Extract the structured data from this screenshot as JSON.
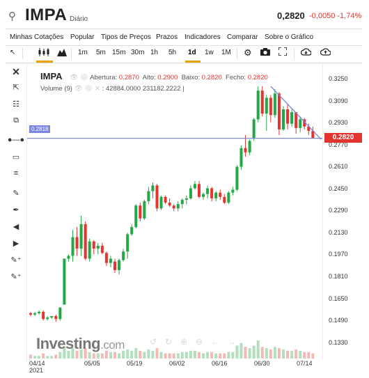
{
  "header": {
    "symbol": "IMPA",
    "period": "Diário",
    "price": "0,2820",
    "change": "-0,0050",
    "change_pct": "-1,74%"
  },
  "menu": {
    "items": [
      "Minhas Cotações",
      "Popular",
      "Tipos de Preços",
      "Prazos",
      "Indicadores",
      "Comparar",
      "Sobre o Gráfico"
    ]
  },
  "toolbar": {
    "intervals": [
      "1m",
      "5m",
      "15m",
      "30m",
      "1h",
      "5h",
      "1d",
      "1w",
      "1M"
    ],
    "active_interval": "1d"
  },
  "legend": {
    "symbol": "IMPA",
    "open_label": "Abertura:",
    "open": "0.2870",
    "high_label": "Alto:",
    "high": "0.2900",
    "low_label": "Baixo:",
    "low": "0.2820",
    "close_label": "Fecho:",
    "close": "0.2820",
    "volume_label": "Volume (9)",
    "volume": "42884.0000",
    "volume_ma": "231182.2222"
  },
  "price_axis": {
    "ticks": [
      "0.3250",
      "0.3090",
      "0.2930",
      "0.2770",
      "0.2610",
      "0.2450",
      "0.2290",
      "0.2130",
      "0.1970",
      "0.1810",
      "0.1650",
      "0.1490",
      "0.1330"
    ],
    "current_price_tag": "0.2820",
    "hline_tag": "0.2818"
  },
  "date_axis": {
    "ticks": [
      "04/14",
      "05/05",
      "05/19",
      "06/02",
      "06/16",
      "06/30",
      "07/14"
    ],
    "year": "2021"
  },
  "watermark": {
    "brand": "Investing",
    "suffix": ".com"
  },
  "colors": {
    "up": "#22a844",
    "down": "#e3342f",
    "hline": "#6f7fd6",
    "trendline": "#7b86e0",
    "accent": "#e8a200"
  },
  "chart_data": {
    "type": "candlestick",
    "ylim": [
      0.128,
      0.334
    ],
    "candles": [
      {
        "o": 0.16,
        "h": 0.161,
        "l": 0.158,
        "c": 0.159
      },
      {
        "o": 0.159,
        "h": 0.161,
        "l": 0.158,
        "c": 0.16
      },
      {
        "o": 0.16,
        "h": 0.162,
        "l": 0.159,
        "c": 0.161
      },
      {
        "o": 0.161,
        "h": 0.162,
        "l": 0.155,
        "c": 0.156
      },
      {
        "o": 0.156,
        "h": 0.158,
        "l": 0.155,
        "c": 0.157
      },
      {
        "o": 0.157,
        "h": 0.158,
        "l": 0.156,
        "c": 0.158
      },
      {
        "o": 0.158,
        "h": 0.159,
        "l": 0.154,
        "c": 0.156
      },
      {
        "o": 0.156,
        "h": 0.164,
        "l": 0.155,
        "c": 0.164
      },
      {
        "o": 0.166,
        "h": 0.198,
        "l": 0.166,
        "c": 0.198
      },
      {
        "o": 0.198,
        "h": 0.201,
        "l": 0.196,
        "c": 0.2
      },
      {
        "o": 0.2,
        "h": 0.218,
        "l": 0.196,
        "c": 0.213
      },
      {
        "o": 0.213,
        "h": 0.22,
        "l": 0.2,
        "c": 0.205
      },
      {
        "o": 0.205,
        "h": 0.228,
        "l": 0.2,
        "c": 0.222
      },
      {
        "o": 0.222,
        "h": 0.224,
        "l": 0.197,
        "c": 0.198
      },
      {
        "o": 0.198,
        "h": 0.212,
        "l": 0.196,
        "c": 0.21
      },
      {
        "o": 0.21,
        "h": 0.211,
        "l": 0.201,
        "c": 0.205
      },
      {
        "o": 0.205,
        "h": 0.209,
        "l": 0.201,
        "c": 0.207
      },
      {
        "o": 0.207,
        "h": 0.209,
        "l": 0.201,
        "c": 0.202
      },
      {
        "o": 0.202,
        "h": 0.203,
        "l": 0.193,
        "c": 0.195
      },
      {
        "o": 0.195,
        "h": 0.2,
        "l": 0.192,
        "c": 0.198
      },
      {
        "o": 0.196,
        "h": 0.198,
        "l": 0.188,
        "c": 0.19
      },
      {
        "o": 0.19,
        "h": 0.198,
        "l": 0.187,
        "c": 0.197
      },
      {
        "o": 0.197,
        "h": 0.205,
        "l": 0.196,
        "c": 0.203
      },
      {
        "o": 0.203,
        "h": 0.216,
        "l": 0.198,
        "c": 0.215
      },
      {
        "o": 0.215,
        "h": 0.222,
        "l": 0.214,
        "c": 0.22
      },
      {
        "o": 0.22,
        "h": 0.236,
        "l": 0.219,
        "c": 0.235
      },
      {
        "o": 0.235,
        "h": 0.237,
        "l": 0.224,
        "c": 0.226
      },
      {
        "o": 0.226,
        "h": 0.239,
        "l": 0.225,
        "c": 0.238
      },
      {
        "o": 0.238,
        "h": 0.248,
        "l": 0.236,
        "c": 0.245
      },
      {
        "o": 0.245,
        "h": 0.251,
        "l": 0.24,
        "c": 0.249
      },
      {
        "o": 0.249,
        "h": 0.25,
        "l": 0.231,
        "c": 0.233
      },
      {
        "o": 0.233,
        "h": 0.242,
        "l": 0.232,
        "c": 0.241
      },
      {
        "o": 0.241,
        "h": 0.242,
        "l": 0.236,
        "c": 0.237
      },
      {
        "o": 0.237,
        "h": 0.24,
        "l": 0.234,
        "c": 0.235
      },
      {
        "o": 0.235,
        "h": 0.236,
        "l": 0.231,
        "c": 0.233
      },
      {
        "o": 0.233,
        "h": 0.238,
        "l": 0.231,
        "c": 0.236
      },
      {
        "o": 0.236,
        "h": 0.24,
        "l": 0.233,
        "c": 0.239
      },
      {
        "o": 0.239,
        "h": 0.242,
        "l": 0.236,
        "c": 0.24
      },
      {
        "o": 0.24,
        "h": 0.249,
        "l": 0.239,
        "c": 0.247
      },
      {
        "o": 0.247,
        "h": 0.252,
        "l": 0.246,
        "c": 0.25
      },
      {
        "o": 0.25,
        "h": 0.252,
        "l": 0.24,
        "c": 0.241
      },
      {
        "o": 0.241,
        "h": 0.244,
        "l": 0.239,
        "c": 0.243
      },
      {
        "o": 0.243,
        "h": 0.249,
        "l": 0.24,
        "c": 0.247
      },
      {
        "o": 0.247,
        "h": 0.248,
        "l": 0.238,
        "c": 0.24
      },
      {
        "o": 0.24,
        "h": 0.245,
        "l": 0.238,
        "c": 0.244
      },
      {
        "o": 0.244,
        "h": 0.246,
        "l": 0.239,
        "c": 0.241
      },
      {
        "o": 0.241,
        "h": 0.243,
        "l": 0.236,
        "c": 0.237
      },
      {
        "o": 0.237,
        "h": 0.245,
        "l": 0.236,
        "c": 0.244
      },
      {
        "o": 0.244,
        "h": 0.248,
        "l": 0.242,
        "c": 0.246
      },
      {
        "o": 0.246,
        "h": 0.263,
        "l": 0.245,
        "c": 0.262
      },
      {
        "o": 0.262,
        "h": 0.277,
        "l": 0.26,
        "c": 0.275
      },
      {
        "o": 0.275,
        "h": 0.284,
        "l": 0.269,
        "c": 0.272
      },
      {
        "o": 0.272,
        "h": 0.281,
        "l": 0.27,
        "c": 0.28
      },
      {
        "o": 0.282,
        "h": 0.296,
        "l": 0.28,
        "c": 0.295
      },
      {
        "o": 0.295,
        "h": 0.318,
        "l": 0.293,
        "c": 0.315
      },
      {
        "o": 0.315,
        "h": 0.318,
        "l": 0.297,
        "c": 0.299
      },
      {
        "o": 0.299,
        "h": 0.312,
        "l": 0.287,
        "c": 0.31
      },
      {
        "o": 0.31,
        "h": 0.312,
        "l": 0.293,
        "c": 0.298
      },
      {
        "o": 0.298,
        "h": 0.316,
        "l": 0.296,
        "c": 0.313
      },
      {
        "o": 0.313,
        "h": 0.314,
        "l": 0.284,
        "c": 0.288
      },
      {
        "o": 0.288,
        "h": 0.304,
        "l": 0.287,
        "c": 0.302
      },
      {
        "o": 0.302,
        "h": 0.306,
        "l": 0.288,
        "c": 0.292
      },
      {
        "o": 0.292,
        "h": 0.302,
        "l": 0.29,
        "c": 0.3
      },
      {
        "o": 0.3,
        "h": 0.3,
        "l": 0.285,
        "c": 0.289
      },
      {
        "o": 0.289,
        "h": 0.297,
        "l": 0.286,
        "c": 0.295
      },
      {
        "o": 0.295,
        "h": 0.296,
        "l": 0.288,
        "c": 0.29
      },
      {
        "o": 0.29,
        "h": 0.292,
        "l": 0.284,
        "c": 0.287
      },
      {
        "o": 0.287,
        "h": 0.29,
        "l": 0.282,
        "c": 0.282
      }
    ],
    "volume": [
      3,
      2,
      2,
      4,
      2,
      2,
      3,
      5,
      9,
      6,
      8,
      6,
      7,
      8,
      5,
      4,
      4,
      4,
      6,
      5,
      5,
      4,
      6,
      7,
      6,
      8,
      6,
      5,
      7,
      6,
      8,
      5,
      4,
      4,
      4,
      4,
      5,
      5,
      6,
      6,
      5,
      4,
      5,
      5,
      4,
      4,
      4,
      5,
      5,
      10,
      12,
      9,
      8,
      10,
      14,
      9,
      8,
      7,
      9,
      8,
      7,
      6,
      6,
      7,
      6,
      5,
      5,
      4
    ],
    "horizontal_line": 0.2818,
    "trend_line": {
      "from_index": 57,
      "from_price": 0.318,
      "to_index": 68,
      "to_price": 0.281
    }
  }
}
